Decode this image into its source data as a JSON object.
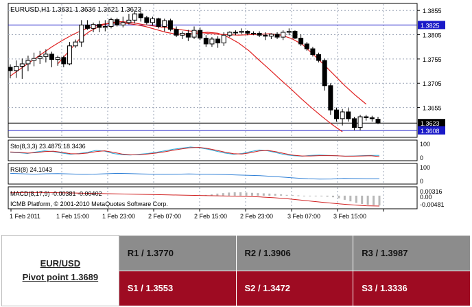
{
  "chart_data": [
    {
      "type": "candlestick",
      "panel": "price",
      "header": "EURUSD,H1  1.3631 1.3636 1.3621 1.3623",
      "price_levels": [
        "1.3855",
        "1.3805",
        "1.3755",
        "1.3705",
        "1.3655"
      ],
      "ylim": [
        1.3595,
        1.3868
      ],
      "horizontal_lines": [
        {
          "value": 1.3825,
          "label": "1.3825",
          "color": "#1a1ac8"
        },
        {
          "value": 1.3623,
          "label": "1.3623",
          "color": "#000000"
        },
        {
          "value": 1.3608,
          "label": "1.3608",
          "color": "#1a1ac8"
        }
      ],
      "candles": [
        [
          1.3738,
          1.3744,
          1.3715,
          1.3731
        ],
        [
          1.3731,
          1.3752,
          1.3716,
          1.374
        ],
        [
          1.374,
          1.3756,
          1.3714,
          1.3745
        ],
        [
          1.3745,
          1.3762,
          1.373,
          1.3752
        ],
        [
          1.3752,
          1.3768,
          1.374,
          1.3756
        ],
        [
          1.3756,
          1.3772,
          1.3745,
          1.376
        ],
        [
          1.376,
          1.3775,
          1.3748,
          1.3765
        ],
        [
          1.3765,
          1.377,
          1.3738,
          1.3754
        ],
        [
          1.3754,
          1.3762,
          1.3741,
          1.3758
        ],
        [
          1.3758,
          1.3762,
          1.3738,
          1.3745
        ],
        [
          1.3745,
          1.379,
          1.3742,
          1.3782
        ],
        [
          1.3782,
          1.3795,
          1.3778,
          1.379
        ],
        [
          1.379,
          1.3835,
          1.378,
          1.3825
        ],
        [
          1.3825,
          1.3835,
          1.3815,
          1.3818
        ],
        [
          1.3818,
          1.383,
          1.381,
          1.3826
        ],
        [
          1.3826,
          1.3834,
          1.381,
          1.382
        ],
        [
          1.382,
          1.3835,
          1.3812,
          1.3822
        ],
        [
          1.3822,
          1.384,
          1.3818,
          1.3836
        ],
        [
          1.3836,
          1.384,
          1.3822,
          1.3825
        ],
        [
          1.3825,
          1.3842,
          1.382,
          1.383
        ],
        [
          1.383,
          1.3848,
          1.3826,
          1.3835
        ],
        [
          1.3835,
          1.3852,
          1.3828,
          1.3848
        ],
        [
          1.3848,
          1.3852,
          1.3832,
          1.384
        ],
        [
          1.384,
          1.3844,
          1.3826,
          1.383
        ],
        [
          1.383,
          1.3842,
          1.3824,
          1.3838
        ],
        [
          1.3838,
          1.384,
          1.3818,
          1.3822
        ],
        [
          1.3822,
          1.3838,
          1.3812,
          1.3834
        ],
        [
          1.3834,
          1.3838,
          1.3812,
          1.3816
        ],
        [
          1.3816,
          1.3822,
          1.38,
          1.3804
        ],
        [
          1.3804,
          1.3812,
          1.3796,
          1.3808
        ],
        [
          1.3808,
          1.3815,
          1.3792,
          1.38
        ],
        [
          1.38,
          1.3822,
          1.3796,
          1.3814
        ],
        [
          1.3814,
          1.382,
          1.3794,
          1.3798
        ],
        [
          1.3798,
          1.3804,
          1.378,
          1.3786
        ],
        [
          1.3786,
          1.38,
          1.378,
          1.3796
        ],
        [
          1.3796,
          1.3802,
          1.3778,
          1.3788
        ],
        [
          1.3788,
          1.381,
          1.3782,
          1.3804
        ],
        [
          1.3804,
          1.3812,
          1.38,
          1.381
        ],
        [
          1.381,
          1.3814,
          1.3804,
          1.381
        ],
        [
          1.381,
          1.3818,
          1.3806,
          1.3812
        ],
        [
          1.3812,
          1.3814,
          1.3804,
          1.3808
        ],
        [
          1.3808,
          1.3812,
          1.3804,
          1.3808
        ],
        [
          1.3808,
          1.3812,
          1.38,
          1.3804
        ],
        [
          1.3804,
          1.381,
          1.3794,
          1.3802
        ],
        [
          1.3802,
          1.3808,
          1.3796,
          1.3806
        ],
        [
          1.3806,
          1.381,
          1.3796,
          1.38
        ],
        [
          1.38,
          1.3814,
          1.3794,
          1.381
        ],
        [
          1.381,
          1.3818,
          1.3804,
          1.3812
        ],
        [
          1.3812,
          1.3814,
          1.3796,
          1.3798
        ],
        [
          1.3798,
          1.3806,
          1.3782,
          1.3786
        ],
        [
          1.3786,
          1.379,
          1.3772,
          1.3776
        ],
        [
          1.3776,
          1.378,
          1.376,
          1.3764
        ],
        [
          1.3764,
          1.3768,
          1.3748,
          1.3752
        ],
        [
          1.3752,
          1.3756,
          1.369,
          1.37
        ],
        [
          1.37,
          1.3705,
          1.364,
          1.365
        ],
        [
          1.365,
          1.3655,
          1.3626,
          1.3632
        ],
        [
          1.3632,
          1.3652,
          1.3618,
          1.3646
        ],
        [
          1.3646,
          1.3654,
          1.3626,
          1.3632
        ],
        [
          1.3632,
          1.3636,
          1.3608,
          1.3614
        ],
        [
          1.3614,
          1.364,
          1.3608,
          1.3636
        ],
        [
          1.3636,
          1.364,
          1.3628,
          1.3634
        ],
        [
          1.3634,
          1.3638,
          1.3626,
          1.3632
        ],
        [
          1.3631,
          1.3636,
          1.3621,
          1.3623
        ]
      ],
      "ma_fast": [
        1.372,
        1.3735,
        1.375,
        1.3765,
        1.378,
        1.3793,
        1.3805,
        1.3815,
        1.3822,
        1.3827,
        1.3829,
        1.3829,
        1.3826,
        1.3822,
        1.3816,
        1.381,
        1.3806,
        1.3806,
        1.3808,
        1.381,
        1.3808,
        1.38,
        1.3788,
        1.3772,
        1.3752,
        1.3733,
        1.3713,
        1.3694,
        1.3674,
        1.3655,
        1.3637,
        1.362,
        1.3605
      ],
      "ma_slow": [
        1.3745,
        1.377,
        1.3795,
        1.3812,
        1.3823,
        1.383,
        1.3832,
        1.383,
        1.3826,
        1.3823,
        1.382,
        1.3817,
        1.3814,
        1.3811,
        1.3808,
        1.3806,
        1.3805,
        1.3804,
        1.3805,
        1.3806,
        1.3807,
        1.3804,
        1.3797,
        1.3785,
        1.3765,
        1.3744,
        1.3722,
        1.37,
        1.368,
        1.3662
      ]
    },
    {
      "type": "line",
      "panel": "stochastic",
      "label": "Sto(8,3,3) 23.4875 18.3436",
      "levels": [
        "100",
        "0"
      ],
      "ylim": [
        0,
        100
      ],
      "series": [
        {
          "values": [
            40,
            38,
            34,
            42,
            48,
            44,
            36,
            30,
            34,
            40,
            50,
            46,
            34,
            28,
            26,
            30,
            34,
            40,
            48,
            56,
            62,
            68,
            64,
            56,
            46,
            36,
            30,
            34,
            44,
            52,
            48,
            38,
            28,
            22,
            20,
            24,
            26,
            24,
            22,
            20,
            21,
            23,
            24,
            24
          ],
          "color": "#2aa9d8"
        },
        {
          "values": [
            42,
            40,
            36,
            38,
            44,
            46,
            40,
            33,
            32,
            36,
            44,
            48,
            40,
            31,
            27,
            28,
            31,
            36,
            43,
            51,
            58,
            64,
            66,
            60,
            51,
            41,
            33,
            31,
            38,
            47,
            50,
            43,
            33,
            25,
            21,
            21,
            23,
            23,
            22,
            20,
            20,
            21,
            22,
            18
          ],
          "color": "#d02020"
        }
      ]
    },
    {
      "type": "line",
      "panel": "rsi",
      "label": "RSI(8) 24.1043",
      "levels": [
        "100",
        "0"
      ],
      "ylim": [
        0,
        100
      ],
      "series": [
        {
          "values": [
            52,
            50,
            48,
            50,
            51,
            49,
            47,
            48,
            50,
            52,
            51,
            49,
            48,
            47,
            48,
            49,
            48,
            47,
            46,
            44,
            42,
            40,
            36,
            32,
            28,
            24,
            22,
            23,
            26,
            25,
            24,
            24
          ],
          "color": "#2e7fd6"
        }
      ]
    },
    {
      "type": "histogram",
      "panel": "macd",
      "label": "MACD(8,17,9) -0.00381 -0.00402",
      "footer": "ICMB Platform, © 2001-2010 MetaQuotes Software Corp.",
      "levels": [
        "0.00316",
        "0.00",
        "-0.00481"
      ],
      "ylim": [
        -0.00481,
        0.00316
      ],
      "histogram": [
        0.0003,
        0.0005,
        0.0008,
        0.001,
        0.0012,
        0.0013,
        0.0013,
        0.0012,
        0.0011,
        0.001,
        0.0009,
        0.0008,
        0.0007,
        0.0005,
        0.0003,
        0.0002,
        0.0001,
        0.0,
        -0.0001,
        -0.0002,
        -0.0003,
        -0.0004,
        -0.0006,
        -0.001,
        -0.0016,
        -0.0022,
        -0.0028,
        -0.0032,
        -0.0035,
        -0.0037,
        -0.0038
      ],
      "signal": [
        0.0011,
        0.0012,
        0.0012,
        0.0012,
        0.0011,
        0.001,
        0.0009,
        0.0008,
        0.0007,
        0.0006,
        0.0005,
        0.0004,
        0.0003,
        0.0002,
        0.0001,
        0.0,
        -0.0001,
        -0.0002,
        -0.0003,
        -0.0005,
        -0.0008,
        -0.0012,
        -0.0017,
        -0.0022,
        -0.0027,
        -0.0032,
        -0.0036,
        -0.0039,
        -0.004
      ],
      "signal_color": "#d02020",
      "histogram_color": "#b8b8b8"
    }
  ],
  "x_axis_labels": [
    "1 Feb 2011",
    "1 Feb 15:00",
    "1 Feb 23:00",
    "2 Feb 07:00",
    "2 Feb 15:00",
    "2 Feb 23:00",
    "3 Feb 07:00",
    "3 Feb 15:00"
  ],
  "pivot_table": {
    "pair": "EUR/USD",
    "pivot": "Pivot point 1.3689",
    "resistance": [
      "R1 / 1.3770",
      "R2 / 1.3906",
      "R3 / 1.3987"
    ],
    "support": [
      "S1 / 1.3553",
      "S2 / 1.3472",
      "S3 / 1.3336"
    ]
  }
}
